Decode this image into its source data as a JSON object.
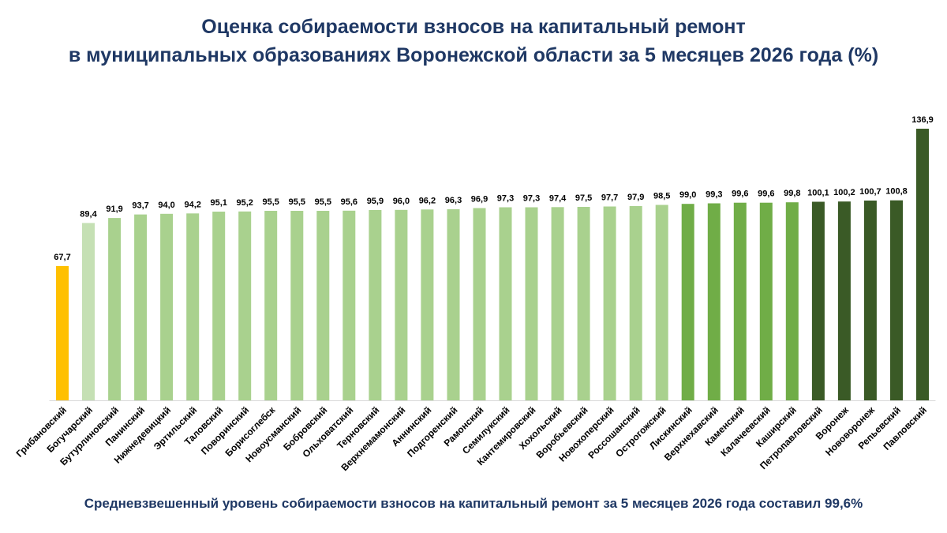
{
  "title_line1": "Оценка собираемости взносов на капитальный ремонт",
  "title_line2": "в муниципальных образованиях Воронежской области за 5 месяцев 2026 года (%)",
  "footer": "Средневзвешенный уровень собираемости взносов на капитальный ремонт за 5 месяцев 2026 года составил 99,6%",
  "colors": {
    "title": "#1f3864",
    "yellow": "#ffc000",
    "pale_green": "#c5e0b4",
    "light_green": "#a9d18e",
    "mid_green": "#70ad47",
    "dark_green": "#3a5a26"
  },
  "chart_data": {
    "type": "bar",
    "title": "Оценка собираемости взносов на капитальный ремонт в муниципальных образованиях Воронежской области за 5 месяцев 2026 года (%)",
    "categories": [
      "Грибановский",
      "Богучарский",
      "Бутурлиновский",
      "Панинский",
      "Нижнедевицкий",
      "Эртильский",
      "Таловский",
      "Поворинский",
      "Борисоглебск",
      "Новоусманский",
      "Бобровский",
      "Ольховатский",
      "Терновский",
      "Верхнемамонский",
      "Аннинский",
      "Подгоренский",
      "Рамонский",
      "Семилукский",
      "Кантемировский",
      "Хохольский",
      "Воробьевский",
      "Новохоперский",
      "Россошанский",
      "Острогожский",
      "Лискинский",
      "Верхнехавский",
      "Каменский",
      "Калачеевский",
      "Каширский",
      "Петропавловский",
      "Воронеж",
      "Нововоронеж",
      "Репьевский",
      "Павловский"
    ],
    "values": [
      67.7,
      89.4,
      91.9,
      93.7,
      94.0,
      94.2,
      95.1,
      95.2,
      95.5,
      95.5,
      95.5,
      95.6,
      95.9,
      96.0,
      96.2,
      96.3,
      96.9,
      97.3,
      97.3,
      97.4,
      97.5,
      97.7,
      97.9,
      98.5,
      99.0,
      99.3,
      99.6,
      99.6,
      99.8,
      100.1,
      100.2,
      100.7,
      100.8,
      136.9
    ],
    "labels": [
      "67,7",
      "89,4",
      "91,9",
      "93,7",
      "94,0",
      "94,2",
      "95,1",
      "95,2",
      "95,5",
      "95,5",
      "95,5",
      "95,6",
      "95,9",
      "96,0",
      "96,2",
      "96,3",
      "96,9",
      "97,3",
      "97,3",
      "97,4",
      "97,5",
      "97,7",
      "97,9",
      "98,5",
      "99,0",
      "99,3",
      "99,6",
      "99,6",
      "99,8",
      "100,1",
      "100,2",
      "100,7",
      "100,8",
      "136,9"
    ],
    "bar_colors": [
      "#ffc000",
      "#c5e0b4",
      "#a9d18e",
      "#a9d18e",
      "#a9d18e",
      "#a9d18e",
      "#a9d18e",
      "#a9d18e",
      "#a9d18e",
      "#a9d18e",
      "#a9d18e",
      "#a9d18e",
      "#a9d18e",
      "#a9d18e",
      "#a9d18e",
      "#a9d18e",
      "#a9d18e",
      "#a9d18e",
      "#a9d18e",
      "#a9d18e",
      "#a9d18e",
      "#a9d18e",
      "#a9d18e",
      "#a9d18e",
      "#70ad47",
      "#70ad47",
      "#70ad47",
      "#70ad47",
      "#70ad47",
      "#3a5a26",
      "#3a5a26",
      "#3a5a26",
      "#3a5a26",
      "#3a5a26"
    ],
    "ylim": [
      0,
      136.9
    ],
    "grid": false,
    "legend": "none"
  }
}
